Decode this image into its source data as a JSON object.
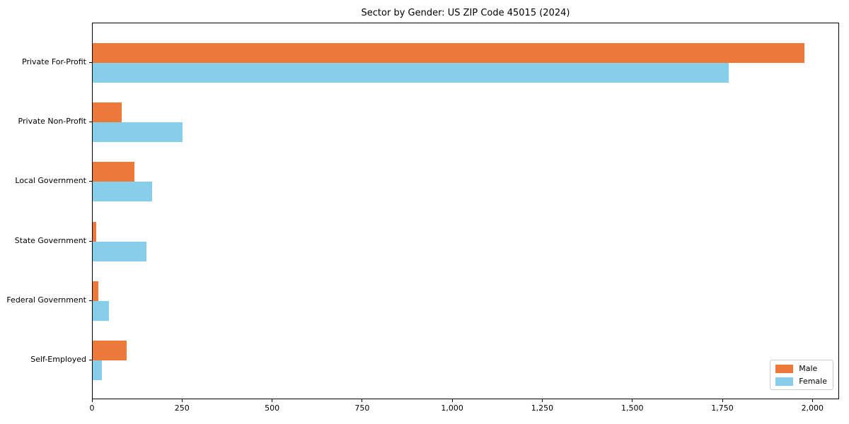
{
  "title": "Sector by Gender: US ZIP Code 45015 (2024)",
  "colors": {
    "male": "#EC7839",
    "female": "#87CEEB",
    "axis": "#000000",
    "legend_border": "#CCCCCC",
    "background": "#FFFFFF"
  },
  "legend": {
    "position": "lower right",
    "items": [
      {
        "label": "Male",
        "color": "#EC7839"
      },
      {
        "label": "Female",
        "color": "#87CEEB"
      }
    ]
  },
  "chart_data": {
    "type": "bar",
    "orientation": "horizontal",
    "title": "Sector by Gender: US ZIP Code 45015 (2024)",
    "categories": [
      "Private For-Profit",
      "Private Non-Profit",
      "Local Government",
      "State Government",
      "Federal Government",
      "Self-Employed"
    ],
    "series": [
      {
        "name": "Male",
        "color": "#EC7839",
        "values": [
          1975,
          80,
          115,
          10,
          15,
          95
        ]
      },
      {
        "name": "Female",
        "color": "#87CEEB",
        "values": [
          1765,
          250,
          165,
          150,
          45,
          25
        ]
      }
    ],
    "xlabel": "",
    "ylabel": "",
    "xlim": [
      0,
      2074
    ],
    "xticks": {
      "values": [
        0,
        250,
        500,
        750,
        1000,
        1250,
        1500,
        1750,
        2000
      ],
      "labels": [
        "0",
        "250",
        "500",
        "750",
        "1,000",
        "1,250",
        "1,500",
        "1,750",
        "2,000"
      ]
    },
    "grid": false,
    "legend_position": "lower right"
  }
}
